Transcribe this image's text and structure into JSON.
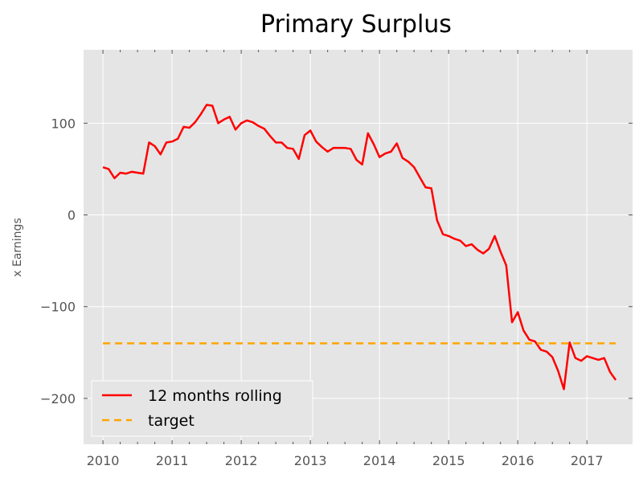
{
  "chart_data": {
    "type": "line",
    "title": "Primary Surplus",
    "xlabel": "",
    "ylabel": "x Earnings",
    "xlim": [
      2009.72,
      2017.66
    ],
    "ylim": [
      -250,
      180
    ],
    "x_ticks": [
      2010,
      2011,
      2012,
      2013,
      2014,
      2015,
      2016,
      2017
    ],
    "y_ticks": [
      -200,
      -100,
      0,
      100
    ],
    "y_tick_labels": [
      "−200",
      "−100",
      "0",
      "100"
    ],
    "grid": true,
    "legend_position": "lower-left",
    "series": [
      {
        "name": "12 months rolling",
        "color": "#ff0000",
        "style": "solid",
        "x": [
          2010.0,
          2010.083,
          2010.167,
          2010.25,
          2010.333,
          2010.417,
          2010.5,
          2010.583,
          2010.667,
          2010.75,
          2010.833,
          2010.917,
          2011.0,
          2011.083,
          2011.167,
          2011.25,
          2011.333,
          2011.417,
          2011.5,
          2011.583,
          2011.667,
          2011.75,
          2011.833,
          2011.917,
          2012.0,
          2012.083,
          2012.167,
          2012.25,
          2012.333,
          2012.417,
          2012.5,
          2012.583,
          2012.667,
          2012.75,
          2012.833,
          2012.917,
          2013.0,
          2013.083,
          2013.167,
          2013.25,
          2013.333,
          2013.417,
          2013.5,
          2013.583,
          2013.667,
          2013.75,
          2013.833,
          2013.917,
          2014.0,
          2014.083,
          2014.167,
          2014.25,
          2014.333,
          2014.417,
          2014.5,
          2014.583,
          2014.667,
          2014.75,
          2014.833,
          2014.917,
          2015.0,
          2015.083,
          2015.167,
          2015.25,
          2015.333,
          2015.417,
          2015.5,
          2015.583,
          2015.667,
          2015.75,
          2015.833,
          2015.917,
          2016.0,
          2016.083,
          2016.167,
          2016.25,
          2016.333,
          2016.417,
          2016.5,
          2016.583,
          2016.667,
          2016.75,
          2016.833,
          2016.917,
          2017.0,
          2017.083,
          2017.167,
          2017.25,
          2017.333,
          2017.417
        ],
        "values": [
          52,
          50,
          40,
          46,
          45,
          47,
          46,
          45,
          79,
          75,
          66,
          79,
          80,
          83,
          96,
          95,
          101,
          110,
          120,
          119,
          100,
          104,
          107,
          93,
          100,
          103,
          101,
          97,
          94,
          86,
          79,
          79,
          73,
          72,
          61,
          87,
          92,
          80,
          74,
          69,
          73,
          73,
          73,
          72,
          60,
          55,
          89,
          77,
          63,
          67,
          69,
          78,
          62,
          58,
          52,
          41,
          30,
          29,
          -6,
          -21,
          -23,
          -26,
          -28,
          -34,
          -32,
          -38,
          -42,
          -37,
          -23,
          -40,
          -55,
          -117,
          -106,
          -126,
          -136,
          -138,
          -147,
          -149,
          -155,
          -170,
          -190,
          -139,
          -156,
          -159,
          -154,
          -156,
          -158,
          -156,
          -171,
          -180
        ]
      },
      {
        "name": "target",
        "color": "#ffa500",
        "style": "dashed",
        "x": [
          2010.0,
          2017.417
        ],
        "values": [
          -140,
          -140
        ]
      }
    ]
  }
}
